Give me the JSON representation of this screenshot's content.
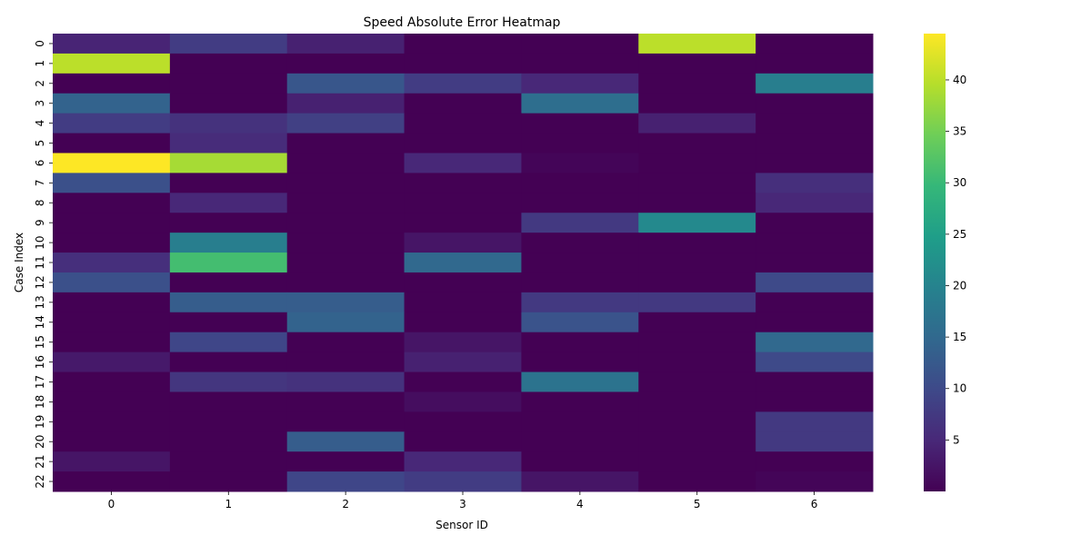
{
  "chart_data": {
    "type": "heatmap",
    "title": "Speed Absolute Error Heatmap",
    "xlabel": "Sensor ID",
    "ylabel": "Case Index",
    "x_labels": [
      "0",
      "1",
      "2",
      "3",
      "4",
      "5",
      "6"
    ],
    "y_labels": [
      "0",
      "1",
      "2",
      "3",
      "4",
      "5",
      "6",
      "7",
      "8",
      "9",
      "10",
      "11",
      "12",
      "13",
      "14",
      "15",
      "16",
      "17",
      "18",
      "19",
      "20",
      "21",
      "22"
    ],
    "values": [
      [
        4.5,
        8.0,
        4.0,
        0.0,
        0.0,
        40.0,
        0.0
      ],
      [
        40.0,
        0.0,
        0.0,
        0.0,
        0.0,
        0.0,
        0.0
      ],
      [
        0.0,
        0.0,
        12.0,
        8.0,
        5.0,
        0.0,
        19.0
      ],
      [
        14.0,
        0.0,
        4.0,
        0.0,
        16.0,
        0.0,
        0.0
      ],
      [
        8.0,
        6.5,
        8.5,
        0.0,
        0.0,
        4.0,
        0.0
      ],
      [
        0.0,
        5.5,
        0.0,
        0.0,
        0.0,
        0.0,
        0.0
      ],
      [
        44.5,
        38.5,
        0.0,
        5.0,
        0.5,
        0.0,
        0.0
      ],
      [
        11.0,
        0.0,
        0.0,
        0.0,
        0.0,
        0.0,
        6.0
      ],
      [
        0.0,
        5.0,
        0.0,
        0.0,
        0.0,
        0.0,
        5.0
      ],
      [
        0.0,
        0.0,
        0.0,
        0.0,
        7.5,
        21.0,
        0.0
      ],
      [
        0.0,
        19.0,
        0.0,
        2.5,
        0.0,
        0.0,
        0.0
      ],
      [
        6.0,
        31.0,
        0.0,
        15.0,
        0.0,
        0.0,
        0.0
      ],
      [
        11.0,
        0.0,
        0.0,
        0.0,
        0.0,
        0.0,
        10.0
      ],
      [
        0.0,
        13.0,
        13.0,
        0.0,
        7.5,
        7.5,
        0.0
      ],
      [
        0.0,
        0.0,
        14.0,
        0.0,
        11.5,
        0.0,
        0.0
      ],
      [
        0.0,
        9.5,
        0.0,
        2.5,
        0.0,
        0.0,
        15.0
      ],
      [
        3.0,
        0.0,
        0.0,
        4.0,
        0.0,
        0.0,
        10.0
      ],
      [
        0.0,
        7.0,
        6.5,
        0.0,
        17.0,
        0.0,
        0.0
      ],
      [
        0.0,
        0.0,
        0.0,
        1.5,
        0.0,
        0.0,
        0.0
      ],
      [
        0.0,
        0.0,
        0.0,
        0.0,
        0.0,
        0.0,
        7.5
      ],
      [
        0.0,
        0.0,
        13.0,
        0.0,
        0.0,
        0.0,
        7.5
      ],
      [
        2.5,
        0.0,
        0.0,
        5.0,
        0.0,
        0.0,
        0.0
      ],
      [
        0.0,
        0.0,
        9.5,
        8.0,
        2.5,
        0.0,
        0.5
      ]
    ],
    "colormap": "viridis",
    "colorbar": {
      "min": 0,
      "max": 44.5,
      "ticks": [
        5,
        10,
        15,
        20,
        25,
        30,
        35,
        40
      ],
      "tick_labels": [
        "5",
        "10",
        "15",
        "20",
        "25",
        "30",
        "35",
        "40"
      ]
    },
    "grid": false,
    "legend": "colorbar-right"
  }
}
